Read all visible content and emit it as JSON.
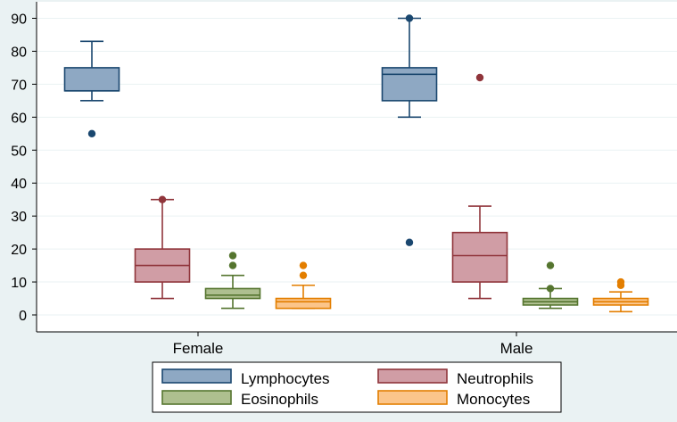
{
  "chart_data": {
    "type": "box",
    "title": "",
    "xlabel": "",
    "ylabel": "",
    "categories": [
      "Female",
      "Male"
    ],
    "ylim": [
      -5,
      95
    ],
    "yticks": [
      0,
      10,
      20,
      30,
      40,
      50,
      60,
      70,
      80,
      90
    ],
    "grid": true,
    "legend_position": "bottom",
    "series": [
      {
        "name": "Lymphocytes",
        "fill": "#8ea8c3",
        "stroke": "#1a476f",
        "boxes": [
          {
            "category": "Female",
            "whisker_low": 65,
            "q1": 68,
            "median": 68,
            "q3": 75,
            "whisker_high": 83,
            "outliers": [
              55
            ]
          },
          {
            "category": "Male",
            "whisker_low": 60,
            "q1": 65,
            "median": 73,
            "q3": 75,
            "whisker_high": 90,
            "outliers": [
              22,
              90
            ]
          }
        ]
      },
      {
        "name": "Neutrophils",
        "fill": "#d09da5",
        "stroke": "#90353b",
        "boxes": [
          {
            "category": "Female",
            "whisker_low": 5,
            "q1": 10,
            "median": 15,
            "q3": 20,
            "whisker_high": 35,
            "outliers": [
              35
            ]
          },
          {
            "category": "Male",
            "whisker_low": 5,
            "q1": 10,
            "median": 18,
            "q3": 25,
            "whisker_high": 33,
            "outliers": [
              72
            ]
          }
        ]
      },
      {
        "name": "Eosinophils",
        "fill": "#aebf8f",
        "stroke": "#55752f",
        "boxes": [
          {
            "category": "Female",
            "whisker_low": 2,
            "q1": 5,
            "median": 6,
            "q3": 8,
            "whisker_high": 12,
            "outliers": [
              15,
              18
            ]
          },
          {
            "category": "Male",
            "whisker_low": 2,
            "q1": 3,
            "median": 4,
            "q3": 5,
            "whisker_high": 8,
            "outliers": [
              8,
              15
            ]
          }
        ]
      },
      {
        "name": "Monocytes",
        "fill": "#fbc58a",
        "stroke": "#e37e00",
        "boxes": [
          {
            "category": "Female",
            "whisker_low": 2,
            "q1": 2,
            "median": 4,
            "q3": 5,
            "whisker_high": 9,
            "outliers": [
              12,
              15
            ]
          },
          {
            "category": "Male",
            "whisker_low": 1,
            "q1": 3,
            "median": 4,
            "q3": 5,
            "whisker_high": 7,
            "outliers": [
              9,
              10
            ]
          }
        ]
      }
    ]
  },
  "colors": {
    "background": "#eaf2f3",
    "plot_area": "#ffffff",
    "gridline": "#eaf2f3",
    "axis": "#000000"
  }
}
